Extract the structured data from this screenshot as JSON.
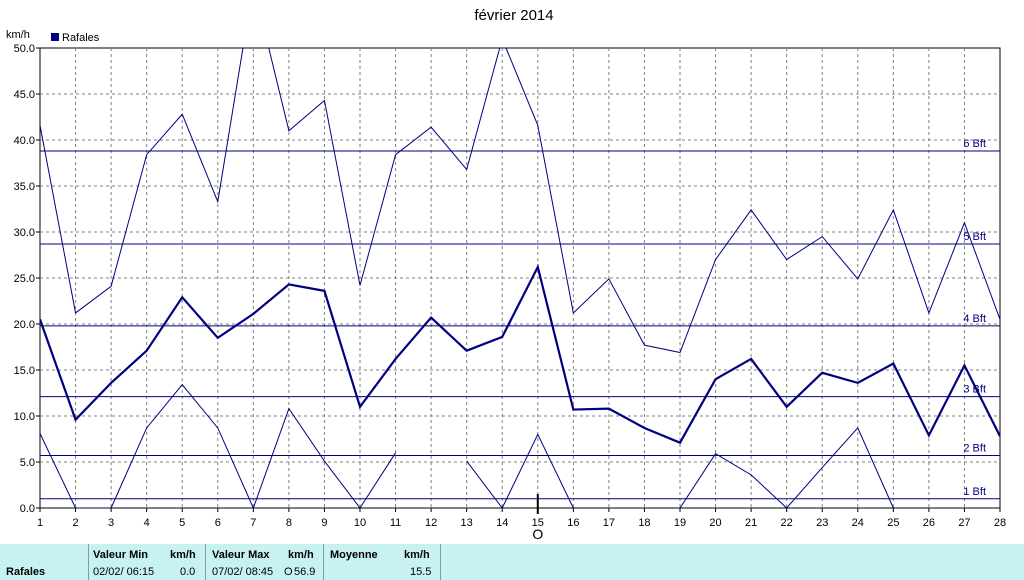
{
  "chart_data": {
    "type": "line",
    "title": "février 2014",
    "unit": "km/h",
    "legend": "Rafales",
    "legend_color": "#000080",
    "x": [
      1,
      2,
      3,
      4,
      5,
      6,
      7,
      8,
      9,
      10,
      11,
      12,
      13,
      14,
      15,
      16,
      17,
      18,
      19,
      20,
      21,
      22,
      23,
      24,
      25,
      26,
      27,
      28
    ],
    "xlim": [
      1,
      28
    ],
    "ylim": [
      0,
      50
    ],
    "yticks": [
      "0.0",
      "5.0",
      "10.0",
      "15.0",
      "20.0",
      "25.0",
      "30.0",
      "35.0",
      "40.0",
      "45.0",
      "50.0"
    ],
    "grid": true,
    "series": [
      {
        "role": "max",
        "values": [
          41.6,
          21.2,
          24.1,
          38.4,
          42.8,
          33.3,
          56.9,
          41.0,
          44.3,
          24.2,
          38.4,
          41.4,
          36.8,
          51.0,
          41.6,
          21.2,
          24.9,
          17.7,
          16.9,
          27.0,
          32.4,
          27.0,
          29.5,
          24.9,
          32.4,
          21.2,
          31.0,
          20.5
        ]
      },
      {
        "role": "mean",
        "values": [
          20.5,
          9.6,
          13.6,
          17.1,
          22.9,
          18.5,
          21.1,
          24.3,
          23.6,
          11.0,
          16.2,
          20.7,
          17.1,
          18.6,
          26.2,
          10.7,
          10.8,
          8.7,
          7.1,
          14.0,
          16.2,
          11.0,
          14.7,
          13.6,
          15.7,
          7.9,
          15.5,
          7.8
        ]
      },
      {
        "role": "min",
        "values": [
          8.1,
          0.0,
          0.0,
          8.7,
          13.4,
          8.7,
          0.0,
          10.8,
          5.1,
          0.0,
          6.0,
          null,
          5.1,
          0.0,
          8.0,
          0.0,
          null,
          null,
          0.0,
          5.9,
          3.6,
          0.0,
          4.4,
          8.7,
          0.0,
          null,
          null,
          null
        ]
      }
    ],
    "beaufort": [
      {
        "label": "1 Bft",
        "value": 1
      },
      {
        "label": "2 Bft",
        "value": 5.7
      },
      {
        "label": "3 Bft",
        "value": 12.1
      },
      {
        "label": "4 Bft",
        "value": 19.8
      },
      {
        "label": "5 Bft",
        "value": 28.7
      },
      {
        "label": "6 Bft",
        "value": 38.8
      }
    ],
    "marker_label": "O",
    "marker_x": 15
  },
  "stats": {
    "row_label": "Rafales",
    "min_header": "Valeur Min",
    "max_header": "Valeur Max",
    "mean_header": "Moyenne",
    "unit": "km/h",
    "min_time": "02/02/  06:15",
    "min_value": "0.0",
    "max_time": "07/02/  08:45",
    "max_dir": "O",
    "max_value": "56.9",
    "mean_value": "15.5"
  }
}
